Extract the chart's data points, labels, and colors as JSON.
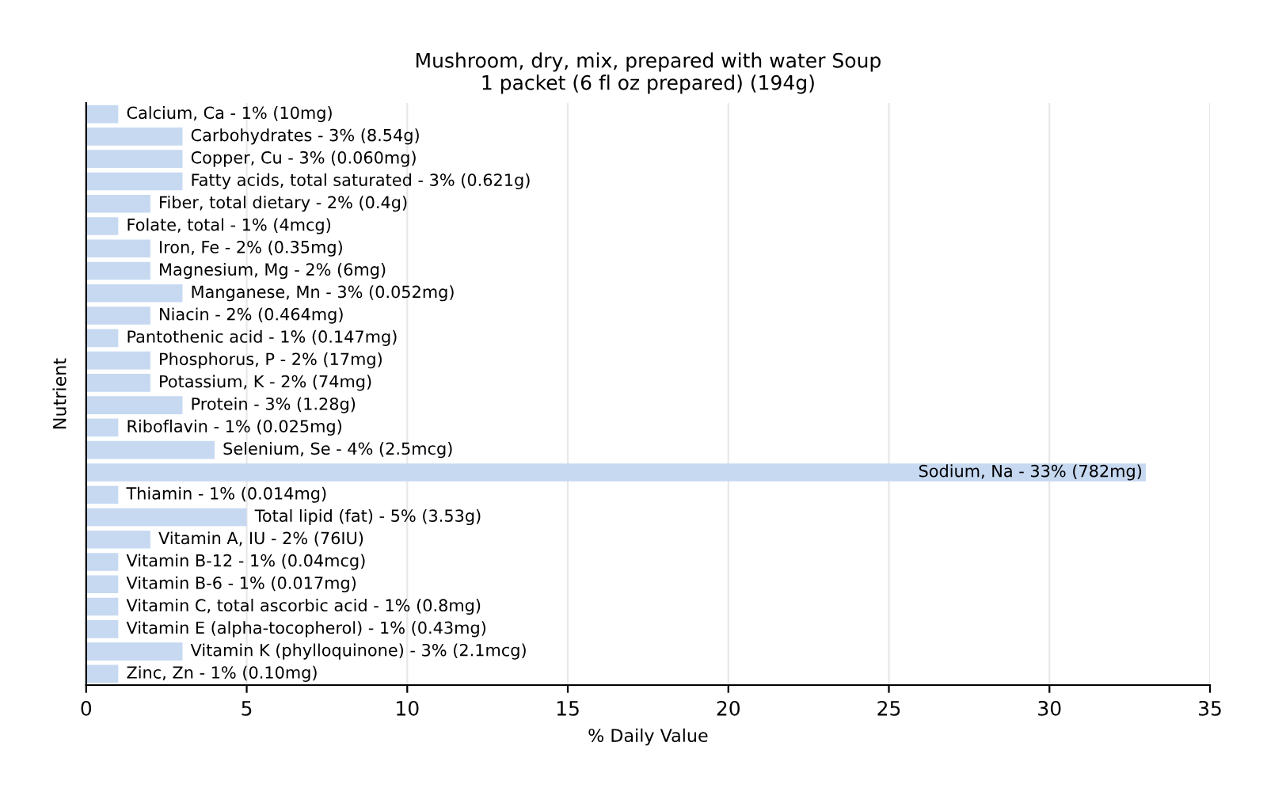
{
  "chart_data": {
    "type": "bar",
    "orientation": "horizontal",
    "title": "Mushroom, dry, mix, prepared with water Soup\n1 packet (6 fl oz prepared) (194g)",
    "xlabel": "% Daily Value",
    "ylabel": "Nutrient",
    "values": [
      1,
      3,
      3,
      3,
      2,
      1,
      2,
      2,
      3,
      2,
      1,
      2,
      2,
      3,
      1,
      4,
      33,
      1,
      5,
      2,
      1,
      1,
      1,
      1,
      3,
      1
    ],
    "categories": [
      "Calcium, Ca - 1% (10mg)",
      "Carbohydrates - 3% (8.54g)",
      "Copper, Cu - 3% (0.060mg)",
      "Fatty acids, total saturated - 3% (0.621g)",
      "Fiber, total dietary - 2% (0.4g)",
      "Folate, total - 1% (4mcg)",
      "Iron, Fe - 2% (0.35mg)",
      "Magnesium, Mg - 2% (6mg)",
      "Manganese, Mn - 3% (0.052mg)",
      "Niacin - 2% (0.464mg)",
      "Pantothenic acid - 1% (0.147mg)",
      "Phosphorus, P - 2% (17mg)",
      "Potassium, K - 2% (74mg)",
      "Protein - 3% (1.28g)",
      "Riboflavin - 1% (0.025mg)",
      "Selenium, Se - 4% (2.5mcg)",
      "Sodium, Na - 33% (782mg)",
      "Thiamin - 1% (0.014mg)",
      "Total lipid (fat) - 5% (3.53g)",
      "Vitamin A, IU - 2% (76IU)",
      "Vitamin B-12 - 1% (0.04mcg)",
      "Vitamin B-6 - 1% (0.017mg)",
      "Vitamin C, total ascorbic acid - 1% (0.8mg)",
      "Vitamin E (alpha-tocopherol) - 1% (0.43mg)",
      "Vitamin K (phylloquinone) - 3% (2.1mcg)",
      "Zinc, Zn - 1% (0.10mg)"
    ],
    "color": "#c6d9f1",
    "xlim": [
      0,
      35
    ],
    "xticks": [
      0,
      5,
      10,
      15,
      20,
      25,
      30,
      35
    ],
    "grid": "x",
    "legend": false
  }
}
